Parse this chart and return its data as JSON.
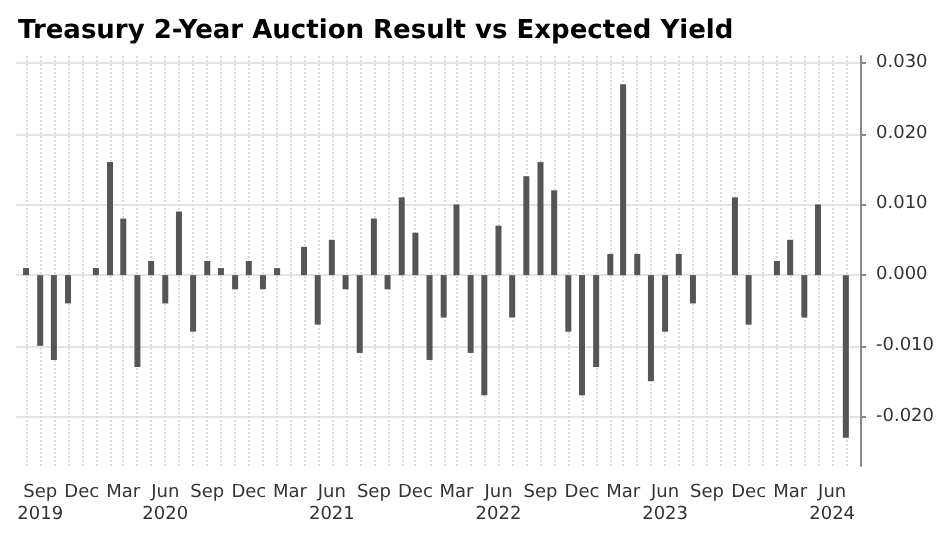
{
  "chart_data": {
    "type": "bar",
    "title": "Treasury 2-Year Auction Result vs Expected Yield",
    "x": [
      "2019-08",
      "2019-09",
      "2019-10",
      "2019-11",
      "2019-12",
      "2020-01",
      "2020-02",
      "2020-03",
      "2020-04",
      "2020-05",
      "2020-06",
      "2020-07",
      "2020-08",
      "2020-09",
      "2020-10",
      "2020-11",
      "2020-12",
      "2021-01",
      "2021-02",
      "2021-03",
      "2021-04",
      "2021-05",
      "2021-06",
      "2021-07",
      "2021-08",
      "2021-09",
      "2021-10",
      "2021-11",
      "2021-12",
      "2022-01",
      "2022-02",
      "2022-03",
      "2022-04",
      "2022-05",
      "2022-06",
      "2022-07",
      "2022-08",
      "2022-09",
      "2022-10",
      "2022-11",
      "2022-12",
      "2023-01",
      "2023-02",
      "2023-03",
      "2023-04",
      "2023-05",
      "2023-06",
      "2023-07",
      "2023-08",
      "2023-09",
      "2023-10",
      "2023-11",
      "2023-12",
      "2024-01",
      "2024-02",
      "2024-03",
      "2024-04",
      "2024-05",
      "2024-06",
      "2024-07"
    ],
    "values": [
      0.001,
      -0.01,
      -0.012,
      -0.004,
      null,
      0.001,
      0.016,
      0.008,
      -0.013,
      0.002,
      -0.004,
      0.009,
      -0.008,
      0.002,
      0.001,
      -0.002,
      0.002,
      -0.002,
      0.001,
      null,
      0.004,
      -0.007,
      0.005,
      -0.002,
      -0.011,
      0.008,
      -0.002,
      0.011,
      0.006,
      -0.012,
      -0.006,
      0.01,
      -0.011,
      -0.017,
      0.007,
      -0.006,
      0.014,
      0.016,
      0.012,
      -0.008,
      -0.017,
      -0.013,
      0.003,
      0.027,
      0.003,
      -0.015,
      -0.008,
      0.003,
      -0.004,
      null,
      null,
      0.011,
      -0.007,
      null,
      0.002,
      0.005,
      -0.006,
      0.01,
      null,
      -0.023
    ],
    "color": "#555555",
    "xlim": [
      "2019-07-10",
      "2024-08-01"
    ],
    "xticks": [
      {
        "value": "2019-08",
        "label": null
      },
      {
        "value": "2019-09",
        "label": "Sep\n2019"
      },
      {
        "value": "2019-10",
        "label": null
      },
      {
        "value": "2019-11",
        "label": null
      },
      {
        "value": "2019-12",
        "label": "Dec"
      },
      {
        "value": "2020-01",
        "label": null
      },
      {
        "value": "2020-02",
        "label": null
      },
      {
        "value": "2020-03",
        "label": "Mar"
      },
      {
        "value": "2020-04",
        "label": null
      },
      {
        "value": "2020-05",
        "label": null
      },
      {
        "value": "2020-06",
        "label": "Jun\n2020"
      },
      {
        "value": "2020-07",
        "label": null
      },
      {
        "value": "2020-08",
        "label": null
      },
      {
        "value": "2020-09",
        "label": "Sep"
      },
      {
        "value": "2020-10",
        "label": null
      },
      {
        "value": "2020-11",
        "label": null
      },
      {
        "value": "2020-12",
        "label": "Dec"
      },
      {
        "value": "2021-01",
        "label": null
      },
      {
        "value": "2021-02",
        "label": null
      },
      {
        "value": "2021-03",
        "label": "Mar"
      },
      {
        "value": "2021-04",
        "label": null
      },
      {
        "value": "2021-05",
        "label": null
      },
      {
        "value": "2021-06",
        "label": "Jun\n2021"
      },
      {
        "value": "2021-07",
        "label": null
      },
      {
        "value": "2021-08",
        "label": null
      },
      {
        "value": "2021-09",
        "label": "Sep"
      },
      {
        "value": "2021-10",
        "label": null
      },
      {
        "value": "2021-11",
        "label": null
      },
      {
        "value": "2021-12",
        "label": "Dec"
      },
      {
        "value": "2022-01",
        "label": null
      },
      {
        "value": "2022-02",
        "label": null
      },
      {
        "value": "2022-03",
        "label": "Mar"
      },
      {
        "value": "2022-04",
        "label": null
      },
      {
        "value": "2022-05",
        "label": null
      },
      {
        "value": "2022-06",
        "label": "Jun\n2022"
      },
      {
        "value": "2022-07",
        "label": null
      },
      {
        "value": "2022-08",
        "label": null
      },
      {
        "value": "2022-09",
        "label": "Sep"
      },
      {
        "value": "2022-10",
        "label": null
      },
      {
        "value": "2022-11",
        "label": null
      },
      {
        "value": "2022-12",
        "label": "Dec"
      },
      {
        "value": "2023-01",
        "label": null
      },
      {
        "value": "2023-02",
        "label": null
      },
      {
        "value": "2023-03",
        "label": "Mar"
      },
      {
        "value": "2023-04",
        "label": null
      },
      {
        "value": "2023-05",
        "label": null
      },
      {
        "value": "2023-06",
        "label": "Jun\n2023"
      },
      {
        "value": "2023-07",
        "label": null
      },
      {
        "value": "2023-08",
        "label": null
      },
      {
        "value": "2023-09",
        "label": "Sep"
      },
      {
        "value": "2023-10",
        "label": null
      },
      {
        "value": "2023-11",
        "label": null
      },
      {
        "value": "2023-12",
        "label": "Dec"
      },
      {
        "value": "2024-01",
        "label": null
      },
      {
        "value": "2024-02",
        "label": null
      },
      {
        "value": "2024-03",
        "label": "Mar"
      },
      {
        "value": "2024-04",
        "label": null
      },
      {
        "value": "2024-05",
        "label": null
      },
      {
        "value": "2024-06",
        "label": "Jun\n2024"
      },
      {
        "value": "2024-07",
        "label": null
      }
    ],
    "ylim": [
      -0.027,
      0.031
    ],
    "yticks": [
      {
        "value": -0.02,
        "label": "-0.020"
      },
      {
        "value": -0.01,
        "label": "-0.010"
      },
      {
        "value": 0,
        "label": "0.000"
      },
      {
        "value": 0.01,
        "label": "0.010"
      },
      {
        "value": 0.02,
        "label": "0.020"
      },
      {
        "value": 0.03,
        "label": "0.030"
      }
    ],
    "grid": true
  }
}
